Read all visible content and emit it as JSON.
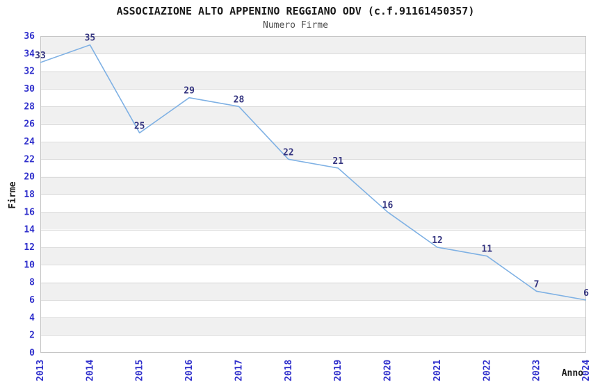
{
  "chart_data": {
    "type": "line",
    "title": "ASSOCIAZIONE ALTO APPENINO REGGIANO ODV (c.f.91161450357)",
    "subtitle": "Numero Firme",
    "xlabel": "Anno",
    "ylabel": "Firme",
    "categories": [
      "2013",
      "2014",
      "2015",
      "2016",
      "2017",
      "2018",
      "2019",
      "2020",
      "2021",
      "2022",
      "2023",
      "2024"
    ],
    "series": [
      {
        "name": "Numero Firme",
        "values": [
          33,
          35,
          25,
          29,
          28,
          22,
          21,
          16,
          12,
          11,
          7,
          6
        ]
      }
    ],
    "ylim": [
      0,
      36
    ],
    "yticks": [
      0,
      2,
      4,
      6,
      8,
      10,
      12,
      14,
      16,
      18,
      20,
      22,
      24,
      26,
      28,
      30,
      32,
      34,
      36
    ],
    "grid": true,
    "banded_background": true,
    "legend": "none",
    "colors": {
      "line": "#7FB1E4",
      "tick_label": "#3030CC",
      "value_label": "#353580",
      "band": "#F0F0F0",
      "grid": "#DCDCDC",
      "border": "#C6C6C6",
      "title": "#1A1A1A",
      "subtitle": "#4D4D4D",
      "background": "#FFFFFF"
    }
  }
}
